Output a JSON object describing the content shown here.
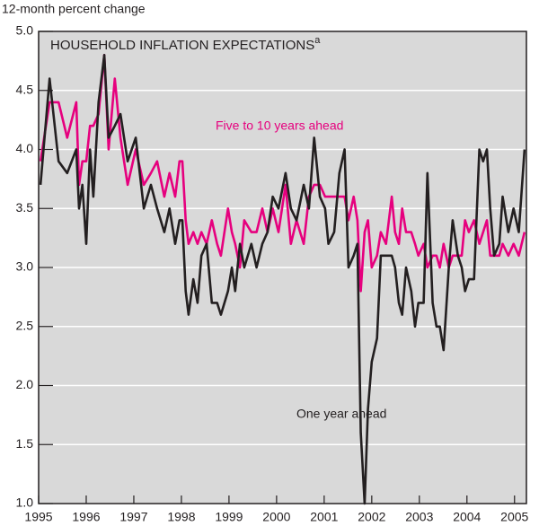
{
  "chart_data": {
    "type": "line",
    "title": "HOUSEHOLD INFLATION EXPECTATIONS",
    "title_superscript": "a",
    "y_axis_label": "12-month percent change",
    "annotations": [
      {
        "text": "Five to 10 years ahead",
        "color": "#e6007e"
      },
      {
        "text": "One year ahead",
        "color": "#231f20"
      }
    ],
    "x": [
      1995.04,
      1995.23,
      1995.42,
      1995.6,
      1995.79,
      1995.85,
      1995.92,
      1996.0,
      1996.08,
      1996.15,
      1996.26,
      1996.38,
      1996.47,
      1996.6,
      1996.72,
      1996.87,
      1997.04,
      1997.21,
      1997.36,
      1997.49,
      1997.64,
      1997.75,
      1997.87,
      1997.96,
      1998.02,
      1998.09,
      1998.15,
      1998.25,
      1998.34,
      1998.42,
      1998.53,
      1998.64,
      1998.75,
      1998.83,
      1998.98,
      1999.06,
      1999.13,
      1999.23,
      1999.32,
      1999.47,
      1999.58,
      1999.7,
      1999.81,
      1999.92,
      2000.04,
      2000.19,
      2000.3,
      2000.42,
      2000.57,
      2000.68,
      2000.79,
      2000.91,
      2001.02,
      2001.09,
      2001.21,
      2001.32,
      2001.43,
      2001.51,
      2001.62,
      2001.7,
      2001.77,
      2001.85,
      2001.92,
      2002.0,
      2002.11,
      2002.19,
      2002.3,
      2002.42,
      2002.49,
      2002.57,
      2002.64,
      2002.72,
      2002.83,
      2002.91,
      2002.98,
      2003.09,
      2003.17,
      2003.28,
      2003.36,
      2003.43,
      2003.51,
      2003.62,
      2003.7,
      2003.81,
      2003.89,
      2003.96,
      2004.04,
      2004.15,
      2004.26,
      2004.34,
      2004.42,
      2004.49,
      2004.57,
      2004.68,
      2004.75,
      2004.87,
      2004.98,
      2005.09,
      2005.21
    ],
    "series": [
      {
        "name": "Five to 10 years ahead",
        "color": "#e6007e",
        "values": [
          3.9,
          4.4,
          4.4,
          4.1,
          4.4,
          3.7,
          3.9,
          3.9,
          4.2,
          4.2,
          4.3,
          4.8,
          4.0,
          4.6,
          4.1,
          3.7,
          4.0,
          3.7,
          3.8,
          3.9,
          3.6,
          3.8,
          3.6,
          3.9,
          3.9,
          3.4,
          3.2,
          3.3,
          3.2,
          3.3,
          3.2,
          3.4,
          3.2,
          3.1,
          3.5,
          3.3,
          3.2,
          3.0,
          3.4,
          3.3,
          3.3,
          3.5,
          3.3,
          3.5,
          3.3,
          3.7,
          3.2,
          3.4,
          3.2,
          3.6,
          3.7,
          3.7,
          3.6,
          3.6,
          3.6,
          3.6,
          3.6,
          3.4,
          3.6,
          3.4,
          2.8,
          3.3,
          3.4,
          3.0,
          3.1,
          3.3,
          3.2,
          3.6,
          3.3,
          3.2,
          3.5,
          3.3,
          3.3,
          3.2,
          3.1,
          3.2,
          3.0,
          3.1,
          3.1,
          3.0,
          3.2,
          3.0,
          3.1,
          3.1,
          3.1,
          3.4,
          3.3,
          3.4,
          3.2,
          3.3,
          3.4,
          3.1,
          3.1,
          3.1,
          3.2,
          3.1,
          3.2,
          3.1,
          3.3
        ]
      },
      {
        "name": "One year ahead",
        "color": "#231f20",
        "values": [
          3.7,
          4.6,
          3.9,
          3.8,
          4.0,
          3.5,
          3.7,
          3.2,
          4.0,
          3.6,
          4.4,
          4.8,
          4.1,
          4.2,
          4.3,
          3.9,
          4.1,
          3.5,
          3.7,
          3.5,
          3.3,
          3.5,
          3.2,
          3.4,
          3.4,
          2.8,
          2.6,
          2.9,
          2.7,
          3.1,
          3.2,
          2.7,
          2.7,
          2.6,
          2.8,
          3.0,
          2.8,
          3.2,
          3.0,
          3.2,
          3.0,
          3.2,
          3.3,
          3.6,
          3.5,
          3.8,
          3.5,
          3.4,
          3.7,
          3.5,
          4.1,
          3.6,
          3.5,
          3.2,
          3.3,
          3.8,
          4.0,
          3.0,
          3.1,
          3.2,
          1.6,
          1.0,
          1.8,
          2.2,
          2.4,
          3.1,
          3.1,
          3.1,
          3.0,
          2.7,
          2.6,
          3.0,
          2.8,
          2.5,
          2.7,
          2.7,
          3.8,
          2.7,
          2.5,
          2.5,
          2.3,
          3.0,
          3.4,
          3.1,
          3.0,
          2.8,
          2.9,
          2.9,
          4.0,
          3.9,
          4.0,
          3.5,
          3.1,
          3.2,
          3.6,
          3.3,
          3.5,
          3.3,
          4.0
        ]
      }
    ],
    "xlim": [
      1995,
      2005.25
    ],
    "xticks": [
      1995,
      1996,
      1997,
      1998,
      1999,
      2000,
      2001,
      2002,
      2003,
      2004,
      2005
    ],
    "ylim": [
      1.0,
      5.0
    ],
    "yticks": [
      {
        "value": 1.0,
        "label": "1.0"
      },
      1.5,
      {
        "value": 2.0,
        "label": "2.0"
      },
      2.5,
      {
        "value": 3.0,
        "label": "3.0"
      },
      3.5,
      {
        "value": 4.0,
        "label": "4.0"
      },
      4.5,
      {
        "value": 5.0,
        "label": "5.0"
      }
    ],
    "grid": true,
    "background": "#d9d9d9"
  }
}
